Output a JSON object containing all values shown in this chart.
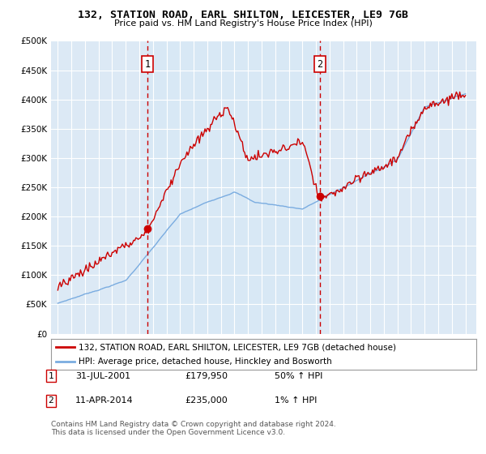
{
  "title1": "132, STATION ROAD, EARL SHILTON, LEICESTER, LE9 7GB",
  "title2": "Price paid vs. HM Land Registry's House Price Index (HPI)",
  "legend_line1": "132, STATION ROAD, EARL SHILTON, LEICESTER, LE9 7GB (detached house)",
  "legend_line2": "HPI: Average price, detached house, Hinckley and Bosworth",
  "annotation1_label": "1",
  "annotation1_date": "31-JUL-2001",
  "annotation1_price": "£179,950",
  "annotation1_hpi": "50% ↑ HPI",
  "annotation1_year": 2001.58,
  "annotation1_value": 179950,
  "annotation2_label": "2",
  "annotation2_date": "11-APR-2014",
  "annotation2_price": "£235,000",
  "annotation2_hpi": "1% ↑ HPI",
  "annotation2_year": 2014.28,
  "annotation2_value": 235000,
  "footer1": "Contains HM Land Registry data © Crown copyright and database right 2024.",
  "footer2": "This data is licensed under the Open Government Licence v3.0.",
  "red_color": "#cc0000",
  "blue_color": "#7aace0",
  "shade_color": "#d8e8f5",
  "bg_color": "#dce9f5",
  "grid_color": "#ffffff",
  "outer_bg": "#ffffff",
  "ylim_min": 0,
  "ylim_max": 500000,
  "ytick_step": 50000,
  "xmin": 1994.5,
  "xmax": 2025.8,
  "year_start": 1995,
  "year_end": 2025
}
